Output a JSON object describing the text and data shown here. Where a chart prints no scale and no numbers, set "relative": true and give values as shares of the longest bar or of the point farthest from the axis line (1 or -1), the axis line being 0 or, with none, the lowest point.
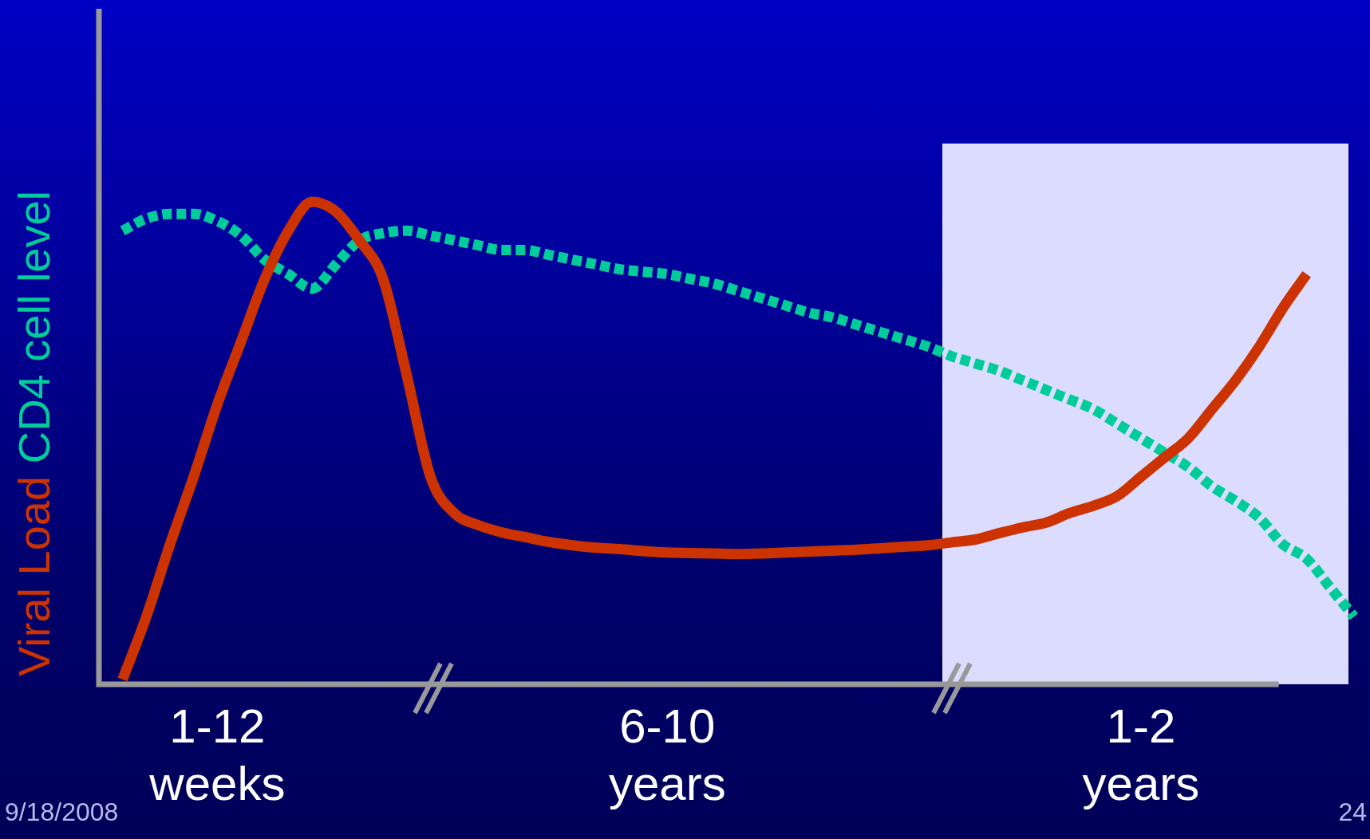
{
  "chart_data": {
    "type": "line",
    "relative": true,
    "categories": [
      null,
      null,
      null,
      null,
      null,
      "1-12 weeks",
      null,
      null,
      null,
      null,
      null,
      null,
      null,
      null,
      null,
      null,
      null,
      null,
      null,
      null,
      null,
      null,
      null,
      null,
      "6-10 years",
      null,
      null,
      null,
      null,
      null,
      null,
      null,
      null,
      null,
      null,
      null,
      null,
      null,
      null,
      null,
      null,
      null,
      null,
      null,
      "1-2 years",
      null,
      null,
      null,
      null,
      null,
      null,
      null,
      null,
      null
    ],
    "series": [
      {
        "name": "Viral Load",
        "color": "#cc3300",
        "line_style": "solid",
        "values": [
          null,
          0.01,
          0.14,
          0.29,
          0.43,
          0.58,
          0.71,
          0.84,
          0.94,
          1.0,
          0.98,
          0.92,
          0.84,
          0.64,
          0.43,
          0.355,
          0.33,
          0.315,
          0.305,
          0.295,
          0.288,
          0.283,
          0.28,
          0.276,
          0.273,
          0.272,
          0.271,
          0.27,
          0.271,
          0.273,
          0.275,
          0.277,
          0.279,
          0.282,
          0.285,
          0.288,
          0.294,
          0.3,
          0.313,
          0.325,
          0.335,
          0.355,
          0.37,
          0.39,
          0.43,
          0.47,
          0.51,
          0.57,
          0.63,
          0.7,
          0.78,
          0.85,
          null,
          null
        ]
      },
      {
        "name": "CD4 cell level",
        "color": "#00cc99",
        "line_style": "dotted",
        "values": [
          null,
          0.94,
          0.965,
          0.975,
          0.975,
          0.96,
          0.93,
          0.88,
          0.85,
          0.82,
          0.87,
          0.92,
          0.935,
          0.94,
          0.93,
          0.92,
          0.91,
          0.9,
          0.9,
          0.89,
          0.88,
          0.87,
          0.86,
          0.855,
          0.85,
          0.84,
          0.83,
          0.815,
          0.8,
          0.785,
          0.77,
          0.76,
          0.745,
          0.73,
          0.715,
          0.7,
          0.68,
          0.665,
          0.65,
          0.63,
          0.61,
          0.59,
          0.57,
          0.54,
          0.51,
          0.48,
          0.45,
          0.41,
          0.38,
          0.345,
          0.29,
          0.26,
          0.2,
          0.14
        ]
      }
    ],
    "marker": "none",
    "grid": false,
    "legend": false,
    "annotations": [
      "9/18/2008",
      "24"
    ]
  }
}
